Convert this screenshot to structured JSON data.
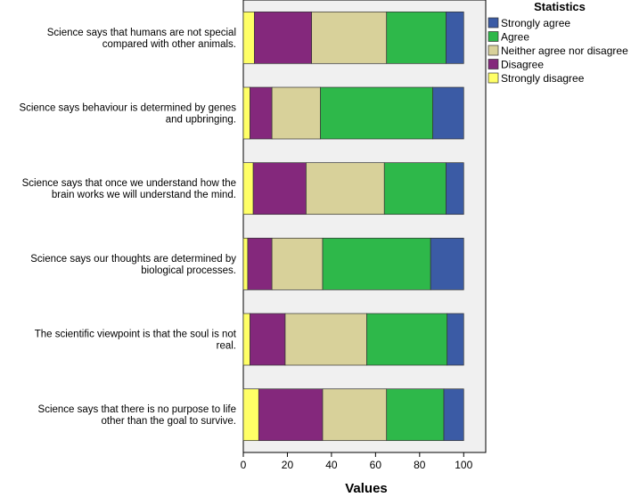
{
  "chart_data": {
    "type": "bar",
    "orientation": "horizontal",
    "stacked": true,
    "categories": [
      [
        "Science says that humans are not special",
        "compared with other animals."
      ],
      [
        "Science says behaviour is determined by genes",
        "and upbringing."
      ],
      [
        "Science says that once we understand how the",
        "brain works we will understand the mind."
      ],
      [
        "Science says our thoughts are determined by",
        "biological processes."
      ],
      [
        "The scientific viewpoint is that the soul is not",
        "real."
      ],
      [
        "Science says that there is no purpose to  life",
        "other than the goal to survive."
      ]
    ],
    "series": [
      {
        "name": "Strongly disagree",
        "color": "#ffff66",
        "values": [
          5,
          3,
          4.5,
          2,
          3,
          7
        ]
      },
      {
        "name": "Disagree",
        "color": "#84287c",
        "values": [
          26,
          10,
          24,
          11,
          16,
          29
        ]
      },
      {
        "name": "Neither agree nor disagree",
        "color": "#d8d19a",
        "values": [
          34,
          22,
          35.5,
          23,
          37,
          29
        ]
      },
      {
        "name": "Agree",
        "color": "#2eb84a",
        "values": [
          27,
          51,
          28,
          49,
          36.5,
          26
        ]
      },
      {
        "name": "Strongly agree",
        "color": "#3b5ba5",
        "values": [
          8,
          14,
          8,
          15,
          7.5,
          9
        ]
      }
    ],
    "xlabel": "Values",
    "ylabel": "",
    "xlim": [
      0,
      110
    ],
    "xticks": [
      0,
      20,
      40,
      60,
      80,
      100
    ],
    "grid": false,
    "legend": {
      "title": "Statistics",
      "placement": "top-right",
      "order": [
        "Strongly agree",
        "Agree",
        "Neither agree nor disagree",
        "Disagree",
        "Strongly disagree"
      ]
    }
  }
}
